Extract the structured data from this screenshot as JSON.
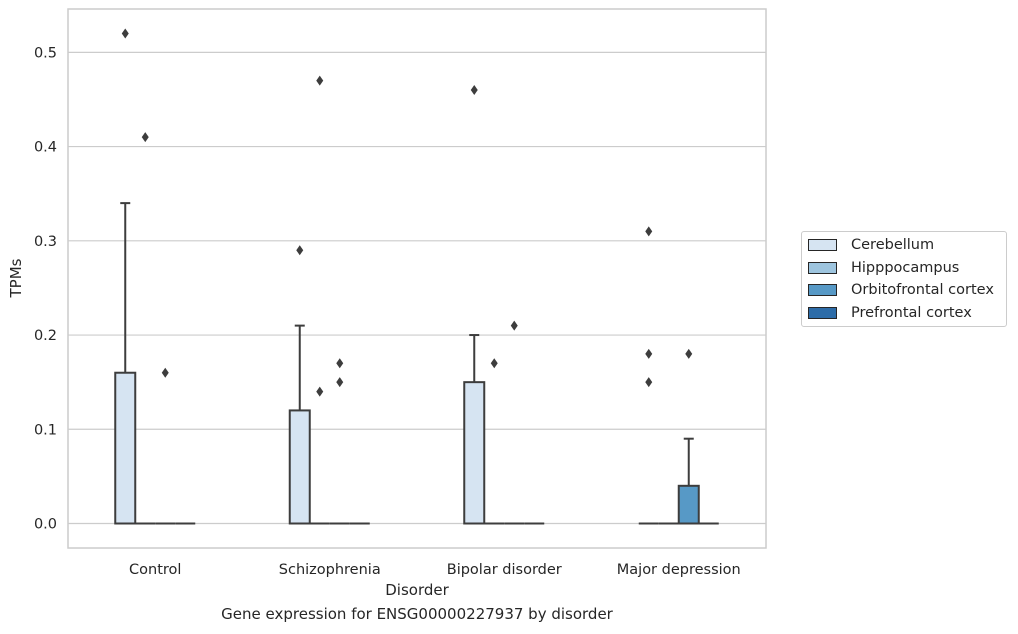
{
  "chart_data": {
    "type": "box",
    "title": "",
    "caption": "Gene expression for ENSG00000227937 by disorder",
    "xlabel": "Disorder",
    "ylabel": "TPMs",
    "ylim": [
      -0.026,
      0.546
    ],
    "yticks": [
      "0.0",
      "0.1",
      "0.2",
      "0.3",
      "0.4",
      "0.5"
    ],
    "ytick_values": [
      0.0,
      0.1,
      0.2,
      0.3,
      0.4,
      0.5
    ],
    "grid": "horizontal",
    "legend_position": "right",
    "categories": [
      "Control",
      "Schizophrenia",
      "Bipolar disorder",
      "Major depression"
    ],
    "series": [
      {
        "name": "Cerebellum",
        "color": "#d6e4f2",
        "boxes": [
          {
            "q1": 0,
            "median": 0,
            "q3": 0.16,
            "whisker_low": 0,
            "whisker_high": 0.34,
            "outliers": [
              0.52
            ]
          },
          {
            "q1": 0,
            "median": 0,
            "q3": 0.12,
            "whisker_low": 0,
            "whisker_high": 0.21,
            "outliers": [
              0.29
            ]
          },
          {
            "q1": 0,
            "median": 0,
            "q3": 0.15,
            "whisker_low": 0,
            "whisker_high": 0.2,
            "outliers": [
              0.46
            ]
          },
          {
            "q1": 0,
            "median": 0,
            "q3": 0,
            "whisker_low": 0,
            "whisker_high": 0,
            "outliers": [
              0.31,
              0.18,
              0.15
            ]
          }
        ]
      },
      {
        "name": "Hipppocampus",
        "color": "#9ec5df",
        "boxes": [
          {
            "q1": 0,
            "median": 0,
            "q3": 0,
            "whisker_low": 0,
            "whisker_high": 0,
            "outliers": [
              0.41
            ]
          },
          {
            "q1": 0,
            "median": 0,
            "q3": 0,
            "whisker_low": 0,
            "whisker_high": 0,
            "outliers": [
              0.47,
              0.14
            ]
          },
          {
            "q1": 0,
            "median": 0,
            "q3": 0,
            "whisker_low": 0,
            "whisker_high": 0,
            "outliers": [
              0.17
            ]
          },
          {
            "q1": 0,
            "median": 0,
            "q3": 0,
            "whisker_low": 0,
            "whisker_high": 0,
            "outliers": []
          }
        ]
      },
      {
        "name": "Orbitofrontal cortex",
        "color": "#5799c6",
        "boxes": [
          {
            "q1": 0,
            "median": 0,
            "q3": 0,
            "whisker_low": 0,
            "whisker_high": 0,
            "outliers": [
              0.16
            ]
          },
          {
            "q1": 0,
            "median": 0,
            "q3": 0,
            "whisker_low": 0,
            "whisker_high": 0,
            "outliers": [
              0.17,
              0.15
            ]
          },
          {
            "q1": 0,
            "median": 0,
            "q3": 0,
            "whisker_low": 0,
            "whisker_high": 0,
            "outliers": [
              0.21
            ]
          },
          {
            "q1": 0,
            "median": 0,
            "q3": 0.04,
            "whisker_low": 0,
            "whisker_high": 0.09,
            "outliers": [
              0.18
            ]
          }
        ]
      },
      {
        "name": "Prefrontal cortex",
        "color": "#2d6ca8",
        "boxes": [
          {
            "q1": 0,
            "median": 0,
            "q3": 0,
            "whisker_low": 0,
            "whisker_high": 0,
            "outliers": []
          },
          {
            "q1": 0,
            "median": 0,
            "q3": 0,
            "whisker_low": 0,
            "whisker_high": 0,
            "outliers": []
          },
          {
            "q1": 0,
            "median": 0,
            "q3": 0,
            "whisker_low": 0,
            "whisker_high": 0,
            "outliers": []
          },
          {
            "q1": 0,
            "median": 0,
            "q3": 0,
            "whisker_low": 0,
            "whisker_high": 0,
            "outliers": []
          }
        ]
      }
    ]
  }
}
